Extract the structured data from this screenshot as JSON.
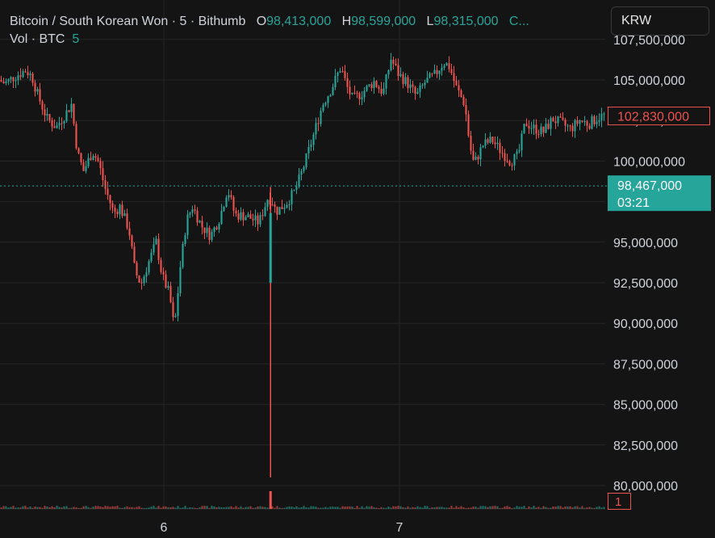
{
  "header": {
    "symbol": "Bitcoin / South Korean Won",
    "sep1": "·",
    "interval": "5",
    "sep2": "·",
    "exchange": "Bithumb",
    "open_label": "O",
    "open_value": "98,413,000",
    "high_label": "H",
    "high_value": "98,599,000",
    "low_label": "L",
    "low_value": "98,315,000",
    "close_truncated": "C..."
  },
  "volume_legend": {
    "label": "Vol · BTC",
    "value": "5"
  },
  "currency_button": "KRW",
  "colors": {
    "background": "#141414",
    "up": "#26a69a",
    "down": "#ef5350",
    "grid": "#262626",
    "text": "#d1d4dc"
  },
  "chart_data": {
    "type": "candlestick",
    "symbol": "Bitcoin / South Korean Won",
    "interval": "5",
    "exchange": "Bithumb",
    "y_axis": {
      "ticks": [
        107500000,
        105000000,
        102500000,
        100000000,
        97500000,
        95000000,
        92500000,
        90000000,
        87500000,
        85000000,
        82500000,
        80000000
      ],
      "tick_labels": [
        "107,500,000",
        "105,000,000",
        "102,500,000",
        "100,000,000",
        "97,500,000",
        "95,000,000",
        "92,500,000",
        "90,000,000",
        "87,500,000",
        "85,000,000",
        "82,500,000",
        "80,000,000"
      ],
      "range": [
        78600000,
        108500000
      ]
    },
    "x_axis": {
      "tick_labels": [
        "6",
        "7"
      ]
    },
    "grid": true,
    "price_path": [
      [
        0,
        105000000
      ],
      [
        0.01,
        104800000
      ],
      [
        0.03,
        105300000
      ],
      [
        0.045,
        105600000
      ],
      [
        0.055,
        105200000
      ],
      [
        0.065,
        104000000
      ],
      [
        0.08,
        102600000
      ],
      [
        0.095,
        102100000
      ],
      [
        0.11,
        102900000
      ],
      [
        0.12,
        103500000
      ],
      [
        0.13,
        100500000
      ],
      [
        0.14,
        99400000
      ],
      [
        0.155,
        100600000
      ],
      [
        0.165,
        99900000
      ],
      [
        0.175,
        98400000
      ],
      [
        0.19,
        96800000
      ],
      [
        0.2,
        97200000
      ],
      [
        0.215,
        95800000
      ],
      [
        0.225,
        93200000
      ],
      [
        0.235,
        92400000
      ],
      [
        0.245,
        93500000
      ],
      [
        0.26,
        95000000
      ],
      [
        0.27,
        92900000
      ],
      [
        0.282,
        91800000
      ],
      [
        0.29,
        89600000
      ],
      [
        0.3,
        93500000
      ],
      [
        0.31,
        96300000
      ],
      [
        0.32,
        97200000
      ],
      [
        0.335,
        96000000
      ],
      [
        0.35,
        95400000
      ],
      [
        0.365,
        96500000
      ],
      [
        0.378,
        98300000
      ],
      [
        0.39,
        96700000
      ],
      [
        0.41,
        96600000
      ],
      [
        0.43,
        96200000
      ],
      [
        0.445,
        97800000
      ],
      [
        0.452,
        97500000
      ],
      [
        0.458,
        96900000
      ],
      [
        0.462,
        97000000
      ],
      [
        0.475,
        97400000
      ],
      [
        0.49,
        98200000
      ],
      [
        0.505,
        99800000
      ],
      [
        0.52,
        101600000
      ],
      [
        0.535,
        103500000
      ],
      [
        0.55,
        104500000
      ],
      [
        0.565,
        105800000
      ],
      [
        0.575,
        104600000
      ],
      [
        0.585,
        103800000
      ],
      [
        0.6,
        104200000
      ],
      [
        0.62,
        104900000
      ],
      [
        0.635,
        104200000
      ],
      [
        0.648,
        106300000
      ],
      [
        0.66,
        105400000
      ],
      [
        0.675,
        104800000
      ],
      [
        0.69,
        104000000
      ],
      [
        0.705,
        104900000
      ],
      [
        0.72,
        105300000
      ],
      [
        0.735,
        106100000
      ],
      [
        0.745,
        105800000
      ],
      [
        0.755,
        104600000
      ],
      [
        0.77,
        103500000
      ],
      [
        0.778,
        101000000
      ],
      [
        0.785,
        99800000
      ],
      [
        0.8,
        101000000
      ],
      [
        0.815,
        101300000
      ],
      [
        0.83,
        100600000
      ],
      [
        0.845,
        100000000
      ],
      [
        0.858,
        100300000
      ],
      [
        0.87,
        102400000
      ],
      [
        0.885,
        102000000
      ],
      [
        0.9,
        101800000
      ],
      [
        0.915,
        102600000
      ],
      [
        0.93,
        102300000
      ],
      [
        0.945,
        102000000
      ],
      [
        0.96,
        102500000
      ],
      [
        0.975,
        102300000
      ],
      [
        0.99,
        102700000
      ],
      [
        1.0,
        102830000
      ]
    ],
    "spike_low": {
      "x_fraction": 0.447,
      "low": 80500000,
      "high": 98400000
    },
    "last_price": 102830000,
    "last_price_label": "102,830,000",
    "crosshair_price": 98467000,
    "crosshair_price_label": "98,467,000",
    "crosshair_time_label": "03:21",
    "volume_axis_label": "1"
  }
}
